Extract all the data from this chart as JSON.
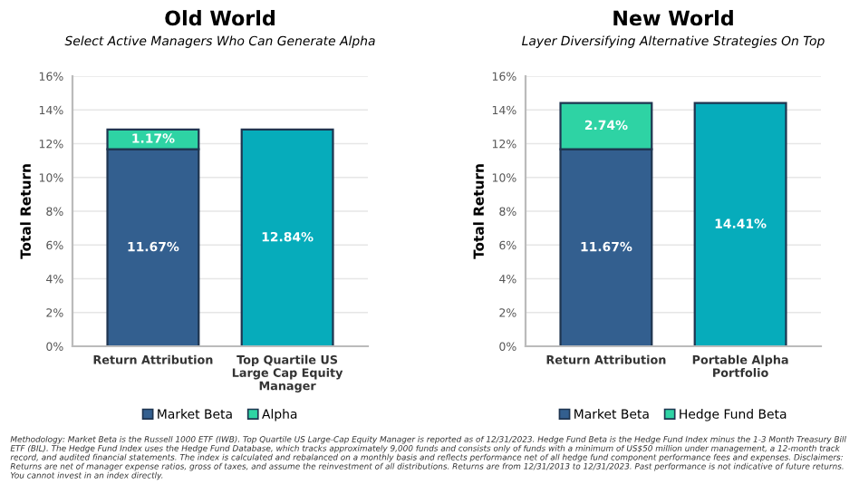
{
  "chart_data": [
    {
      "type": "bar",
      "title": "Old World",
      "subtitle": "Select Active Managers Who Can Generate Alpha",
      "ylabel": "Total Return",
      "categories": [
        "Return Attribution",
        "Top Quartile US Large Cap Equity Manager"
      ],
      "stacked": true,
      "series": [
        {
          "name": "Market Beta",
          "color": "#335f8f",
          "values": [
            11.67,
            null
          ],
          "value_labels": [
            "11.67%",
            null
          ]
        },
        {
          "name": "Alpha",
          "color": "#2ed3a4",
          "values": [
            1.17,
            null
          ],
          "value_labels": [
            "1.17%",
            null
          ]
        },
        {
          "color": "#06acbb",
          "values": [
            null,
            12.84
          ],
          "value_labels": [
            null,
            "12.84%"
          ]
        }
      ],
      "ylim": [
        0,
        16
      ],
      "yticks": [
        {
          "value": 0,
          "label": "0%"
        },
        {
          "value": 2,
          "label": "2%"
        },
        {
          "value": 4,
          "label": "4%"
        },
        {
          "value": 6,
          "label": "6%"
        },
        {
          "value": 8,
          "label": "8%"
        },
        {
          "value": 10,
          "label": "10%"
        },
        {
          "value": 12,
          "label": "12%"
        },
        {
          "value": 14,
          "label": "14%"
        },
        {
          "value": 16,
          "label": "16%"
        }
      ],
      "grid": "y",
      "legend": "bottom",
      "annotations": [
        "Methodology: Market Beta is the Russell 1000 ETF (IWB). Top Quartile US Large-Cap Equity Manager is reported as of 12/31/2023. Hedge Fund Beta is the Hedge Fund Index minus the 1-3 Month Treasury Bill ETF (BIL). The Hedge Fund Index uses the Hedge Fund Database, which tracks approximately 9,000 funds and consists only of funds with a minimum of US$50 million under management, a 12-month track record, and audited financial statements. The index is calculated and rebalanced on a monthly basis and reflects performance net of all hedge fund component performance fees and expenses. Disclaimers: Returns are net of manager expense ratios, gross of taxes, and assume the reinvestment of all distributions. Returns are from 12/31/2013 to 12/31/2023. Past performance is not indicative of future returns. You cannot invest in an index directly."
      ]
    },
    {
      "type": "bar",
      "title": "New World",
      "subtitle": "Layer Diversifying Alternative Strategies On Top",
      "ylabel": "Total Return",
      "categories": [
        "Return Attribution",
        "Portable Alpha Portfolio"
      ],
      "stacked": true,
      "series": [
        {
          "name": "Market Beta",
          "color": "#335f8f",
          "values": [
            11.67,
            null
          ],
          "value_labels": [
            "11.67%",
            null
          ]
        },
        {
          "name": "Hedge Fund Beta",
          "color": "#2ed3a4",
          "values": [
            2.74,
            null
          ],
          "value_labels": [
            "2.74%",
            null
          ]
        },
        {
          "color": "#06acbb",
          "values": [
            null,
            14.41
          ],
          "value_labels": [
            null,
            "14.41%"
          ]
        }
      ],
      "ylim": [
        0,
        16
      ],
      "yticks": [
        {
          "value": 0,
          "label": "0%"
        },
        {
          "value": 2,
          "label": "2%"
        },
        {
          "value": 4,
          "label": "4%"
        },
        {
          "value": 6,
          "label": "6%"
        },
        {
          "value": 8,
          "label": "8%"
        },
        {
          "value": 10,
          "label": "10%"
        },
        {
          "value": 12,
          "label": "12%"
        },
        {
          "value": 14,
          "label": "14%"
        },
        {
          "value": 16,
          "label": "16%"
        }
      ],
      "grid": "y",
      "legend": "bottom"
    }
  ]
}
